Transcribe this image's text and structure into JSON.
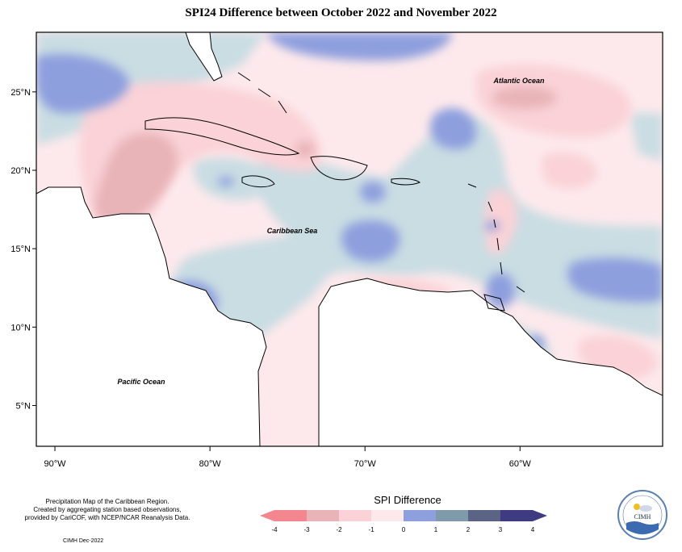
{
  "title": "SPI24 Difference between October 2022 and November 2022",
  "map": {
    "region": "Caribbean",
    "lon_ticks": [
      {
        "label": "90°W",
        "lon": -90
      },
      {
        "label": "80°W",
        "lon": -80
      },
      {
        "label": "70°W",
        "lon": -70
      },
      {
        "label": "60°W",
        "lon": -60
      }
    ],
    "lat_ticks": [
      {
        "label": "25°N",
        "lat": 25
      },
      {
        "label": "20°N",
        "lat": 20
      },
      {
        "label": "15°N",
        "lat": 15
      },
      {
        "label": "10°N",
        "lat": 10
      },
      {
        "label": "5°N",
        "lat": 5
      }
    ],
    "extent": {
      "lon_min": -91.2,
      "lon_max": -50.8,
      "lat_min": 2.4,
      "lat_max": 28.8
    },
    "labels": {
      "atlantic": "Atlantic Ocean",
      "caribbean": "Caribbean Sea",
      "pacific": "Pacific Ocean"
    }
  },
  "legend": {
    "title": "SPI Difference",
    "ticks": [
      "-4",
      "-3",
      "-2",
      "-1",
      "0",
      "1",
      "2",
      "3",
      "4"
    ],
    "colors": [
      "#f4868f",
      "#e8b4b8",
      "#fad2d7",
      "#fde9ec",
      "#c9dde3",
      "#8e9fde",
      "#7f9aab",
      "#5b6485",
      "#3f3b82"
    ]
  },
  "credit": {
    "line1": "Precipitation Map of the Caribbean Region.",
    "line2": "Created by aggregating station based observations,",
    "line3": "provided by CariCOF, with NCEP/NCAR Reanalysis Data.",
    "date": "CIMH Dec-2022"
  },
  "logo": {
    "text": "CIMH"
  }
}
